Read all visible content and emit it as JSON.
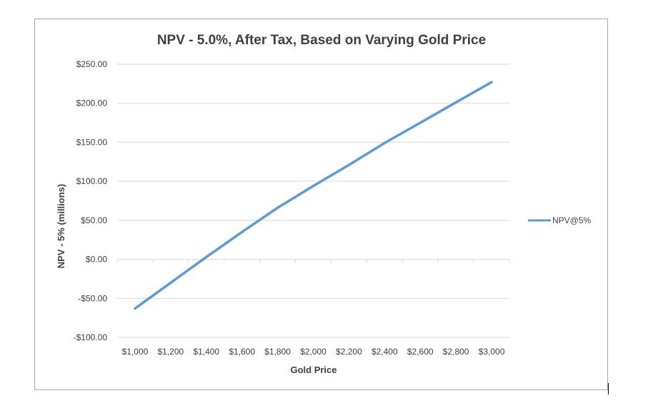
{
  "chart_data": {
    "type": "line",
    "title": "NPV - 5.0%, After Tax, Based on Varying Gold Price",
    "xlabel": "Gold Price",
    "ylabel": "NPV - 5% (millions)",
    "categories": [
      "$1,000",
      "$1,200",
      "$1,400",
      "$1,600",
      "$1,800",
      "$2,000",
      "$2,200",
      "$2,400",
      "$2,600",
      "$2,800",
      "$3,000"
    ],
    "x": [
      1000,
      1200,
      1400,
      1600,
      1800,
      2000,
      2200,
      2400,
      2600,
      2800,
      3000
    ],
    "series": [
      {
        "name": "NPV@5%",
        "color": "#5b9bd5",
        "values": [
          -63,
          -30,
          3,
          35,
          66,
          94,
          121,
          149,
          175,
          201,
          227
        ]
      }
    ],
    "ylim": [
      -100,
      250
    ],
    "yticks": [
      -100,
      -50,
      0,
      50,
      100,
      150,
      200,
      250
    ],
    "ytick_labels": [
      "-$100.00",
      "-$50.00",
      "$0.00",
      "$50.00",
      "$100.00",
      "$150.00",
      "$200.00",
      "$250.00"
    ],
    "grid": true,
    "legend_position": "right",
    "colors": {
      "gridline": "#d9d9d9",
      "text": "#404040",
      "frame": "#a6a6a6"
    }
  }
}
